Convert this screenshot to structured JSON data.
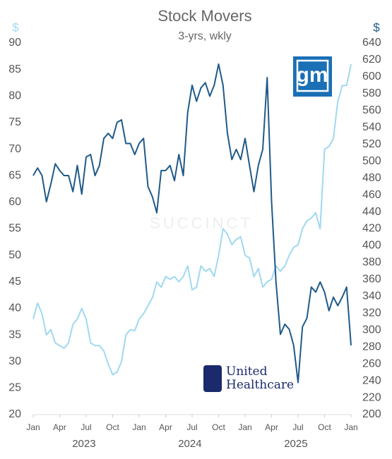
{
  "chart_data": {
    "type": "line",
    "title": "Stock Movers",
    "subtitle": "3-yrs, wkly",
    "y_label": "$",
    "y2_label": "$",
    "categories": [
      "Jan",
      null,
      null,
      null,
      null,
      null,
      "Apr",
      null,
      null,
      null,
      null,
      null,
      "Jul",
      null,
      null,
      null,
      null,
      null,
      "Oct",
      null,
      null,
      null,
      null,
      null,
      "Jan",
      null,
      null,
      null,
      null,
      null,
      "Apr",
      null,
      null,
      null,
      null,
      null,
      "Jul",
      null,
      null,
      null,
      null,
      null,
      "Oct",
      null,
      null,
      null,
      null,
      null,
      "Jan",
      null,
      null,
      null,
      null,
      null,
      "Apr",
      null,
      null,
      null,
      null,
      null,
      "Jul",
      null,
      null,
      null,
      null,
      null,
      "Oct",
      null,
      null,
      null,
      null,
      null,
      "Jan"
    ],
    "years": [
      "2023",
      "2024",
      "2025"
    ],
    "series": [
      {
        "name": "gm",
        "color": "#9fd9f1",
        "axis": "y",
        "values": [
          38,
          41,
          39,
          35,
          36,
          33.5,
          33,
          32.5,
          33.5,
          37,
          38,
          40,
          38,
          33.5,
          33,
          33,
          32,
          29.5,
          27.5,
          28,
          30,
          35,
          36,
          35.8,
          38,
          39,
          40.5,
          42,
          45,
          44,
          46,
          45.5,
          46,
          45,
          46,
          48,
          43.5,
          44,
          48,
          47,
          47.5,
          46,
          50,
          55,
          54,
          52,
          53,
          53.5,
          50,
          49.5,
          46,
          47.5,
          44,
          45,
          45.5,
          48,
          47,
          48,
          50,
          51.5,
          52,
          55,
          56.5,
          57,
          58,
          55,
          70,
          70.5,
          72,
          79,
          82,
          82,
          86
        ]
      },
      {
        "name": "United\nHealthcare",
        "color": "#1f5a8a",
        "axis": "y2",
        "values": [
          483,
          492,
          483,
          452,
          473,
          497,
          489,
          483,
          483,
          464,
          495,
          461,
          505,
          508,
          483,
          495,
          527,
          533,
          527,
          546,
          549,
          521,
          521,
          508,
          521,
          527,
          470,
          458,
          439,
          489,
          489,
          495,
          477,
          508,
          483,
          558,
          590,
          571,
          587,
          593,
          577,
          590,
          615,
          590,
          533,
          502,
          514,
          502,
          527,
          495,
          464,
          495,
          514,
          599,
          452,
          357,
          295,
          307,
          301,
          282,
          238,
          304,
          314,
          351,
          345,
          357,
          345,
          323,
          339,
          329,
          339,
          351,
          282
        ]
      }
    ],
    "ylim": [
      20,
      90
    ],
    "yticks": [
      20,
      25,
      30,
      35,
      40,
      45,
      50,
      55,
      60,
      65,
      70,
      75,
      80,
      85,
      90
    ],
    "y2lim": [
      200,
      640
    ],
    "y2ticks": [
      200,
      220,
      240,
      260,
      280,
      300,
      320,
      340,
      360,
      380,
      400,
      420,
      440,
      460,
      480,
      500,
      520,
      540,
      560,
      580,
      600,
      620,
      640
    ],
    "watermark": "SUCCINCT"
  }
}
